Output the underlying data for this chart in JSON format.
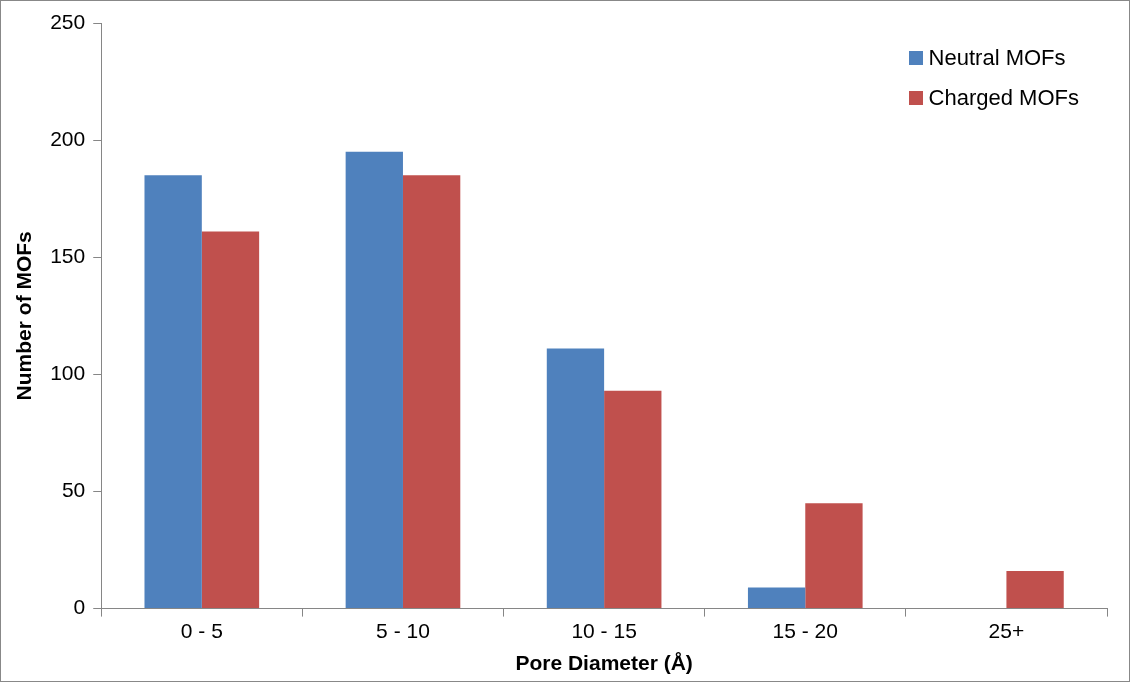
{
  "chart_data": {
    "type": "bar",
    "xlabel": "Pore Diameter (Å)",
    "ylabel": "Number of MOFs",
    "categories": [
      "0 - 5",
      "5 - 10",
      "10 - 15",
      "15 - 20",
      "25+"
    ],
    "series": [
      {
        "name": "Neutral MOFs",
        "color": "#4f81bd",
        "values": [
          185,
          195,
          111,
          9,
          0
        ]
      },
      {
        "name": "Charged MOFs",
        "color": "#c0504d",
        "values": [
          161,
          185,
          93,
          45,
          16
        ]
      }
    ],
    "ylim": [
      0,
      250
    ],
    "yticks": [
      0,
      50,
      100,
      150,
      200,
      250
    ],
    "grid": false,
    "legend": "top right"
  }
}
